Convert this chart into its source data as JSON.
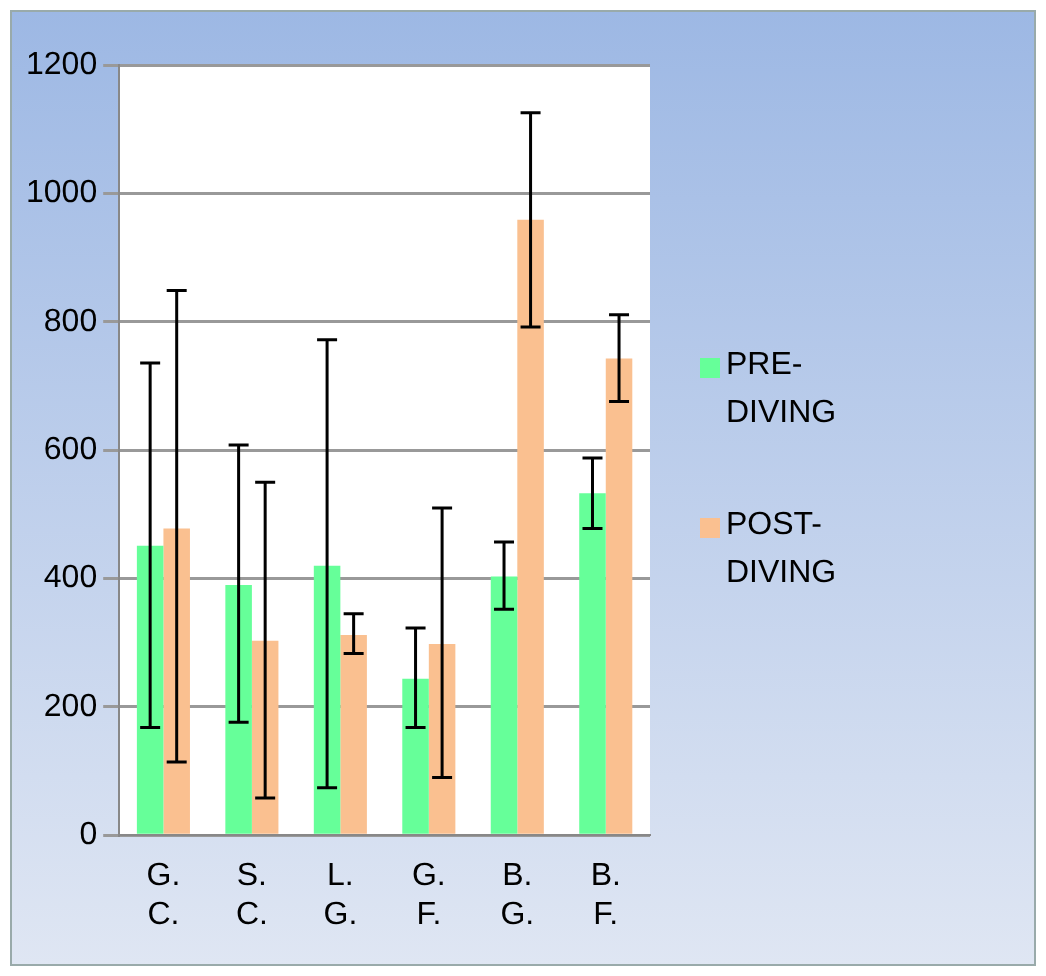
{
  "chart_data": {
    "type": "bar",
    "categories": [
      "G. C.",
      "S. C.",
      "L. G.",
      "G. F.",
      "B. G.",
      "B. F."
    ],
    "series": [
      {
        "name": "PRE-DIVING",
        "color": "#66ff99",
        "values": [
          451,
          390,
          420,
          244,
          403,
          533
        ],
        "errors": [
          [
            168,
            736
          ],
          [
            176,
            608
          ],
          [
            74,
            772
          ],
          [
            168,
            323
          ],
          [
            352,
            457
          ],
          [
            478,
            588
          ]
        ]
      },
      {
        "name": "POST-DIVING",
        "color": "#fac090",
        "values": [
          478,
          303,
          312,
          298,
          959,
          743
        ],
        "errors": [
          [
            114,
            849
          ],
          [
            58,
            550
          ],
          [
            283,
            345
          ],
          [
            90,
            510
          ],
          [
            792,
            1126
          ],
          [
            676,
            811
          ]
        ]
      }
    ],
    "ylim": [
      0,
      1200
    ],
    "yticks": [
      0,
      200,
      400,
      600,
      800,
      1000,
      1200
    ],
    "grid": "y",
    "legend": "right"
  }
}
